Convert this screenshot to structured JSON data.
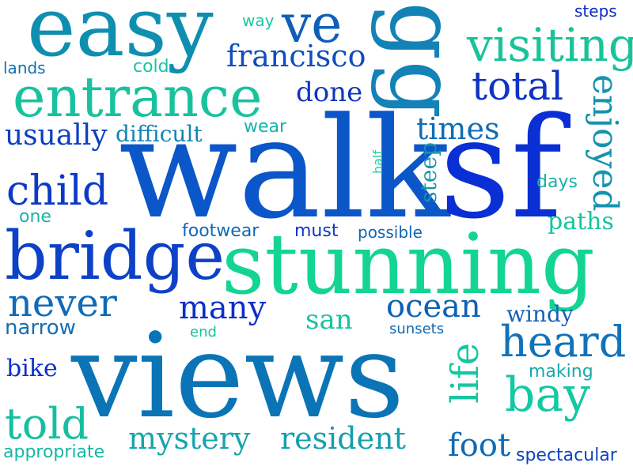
{
  "words": [
    {
      "text": "walk",
      "color": "#0b56c8"
    },
    {
      "text": "views",
      "color": "#0a74b6"
    },
    {
      "text": "sf",
      "color": "#0a2fd4"
    },
    {
      "text": "stunning",
      "color": "#13d592"
    },
    {
      "text": "easy",
      "color": "#0f8fb0"
    },
    {
      "text": "gg",
      "color": "#1382b6"
    },
    {
      "text": "bridge",
      "color": "#0d41c7"
    },
    {
      "text": "entrance",
      "color": "#19c29e"
    },
    {
      "text": "visiting",
      "color": "#18c39b"
    },
    {
      "text": "ve",
      "color": "#0f5fb8"
    },
    {
      "text": "heard",
      "color": "#1272b8"
    },
    {
      "text": "bay",
      "color": "#13c9a3"
    },
    {
      "text": "francisco",
      "color": "#0f4cbf"
    },
    {
      "text": "total",
      "color": "#0f34c2"
    },
    {
      "text": "child",
      "color": "#0d39c8"
    },
    {
      "text": "never",
      "color": "#0d6bb8"
    },
    {
      "text": "many",
      "color": "#0d2ec8"
    },
    {
      "text": "ocean",
      "color": "#0d61b7"
    },
    {
      "text": "told",
      "color": "#17bfa0"
    },
    {
      "text": "mystery",
      "color": "#16a5ad"
    },
    {
      "text": "resident",
      "color": "#13a0ac"
    },
    {
      "text": "life",
      "color": "#16c6a1"
    },
    {
      "text": "times",
      "color": "#0f6db6"
    },
    {
      "text": "enjoyed",
      "color": "#1693ad"
    },
    {
      "text": "usually",
      "color": "#0d3fc3"
    },
    {
      "text": "done",
      "color": "#1034bf"
    },
    {
      "text": "foot",
      "color": "#106bb7"
    },
    {
      "text": "san",
      "color": "#18c39e"
    },
    {
      "text": "difficult",
      "color": "#1285b4"
    },
    {
      "text": "paths",
      "color": "#17c4a0"
    },
    {
      "text": "windy",
      "color": "#1561b6"
    },
    {
      "text": "bike",
      "color": "#0d2fcc"
    },
    {
      "text": "narrow",
      "color": "#1370b4"
    },
    {
      "text": "making",
      "color": "#18a8ab"
    },
    {
      "text": "spectacular",
      "color": "#1043bf"
    },
    {
      "text": "appropriate",
      "color": "#16b6a5"
    },
    {
      "text": "footwear",
      "color": "#1069b5"
    },
    {
      "text": "must",
      "color": "#0f37c6"
    },
    {
      "text": "possible",
      "color": "#1167b6"
    },
    {
      "text": "steep",
      "color": "#1994ac"
    },
    {
      "text": "days",
      "color": "#18b2a5"
    },
    {
      "text": "cold",
      "color": "#1ac5a0"
    },
    {
      "text": "way",
      "color": "#1cc6a2"
    },
    {
      "text": "lands",
      "color": "#1171b4"
    },
    {
      "text": "steps",
      "color": "#0d2cc7"
    },
    {
      "text": "wear",
      "color": "#14b4a5"
    },
    {
      "text": "half",
      "color": "#1bd0a0"
    },
    {
      "text": "one",
      "color": "#18b5a4"
    },
    {
      "text": "sunsets",
      "color": "#1168b6"
    },
    {
      "text": "end",
      "color": "#17c2a0"
    }
  ]
}
